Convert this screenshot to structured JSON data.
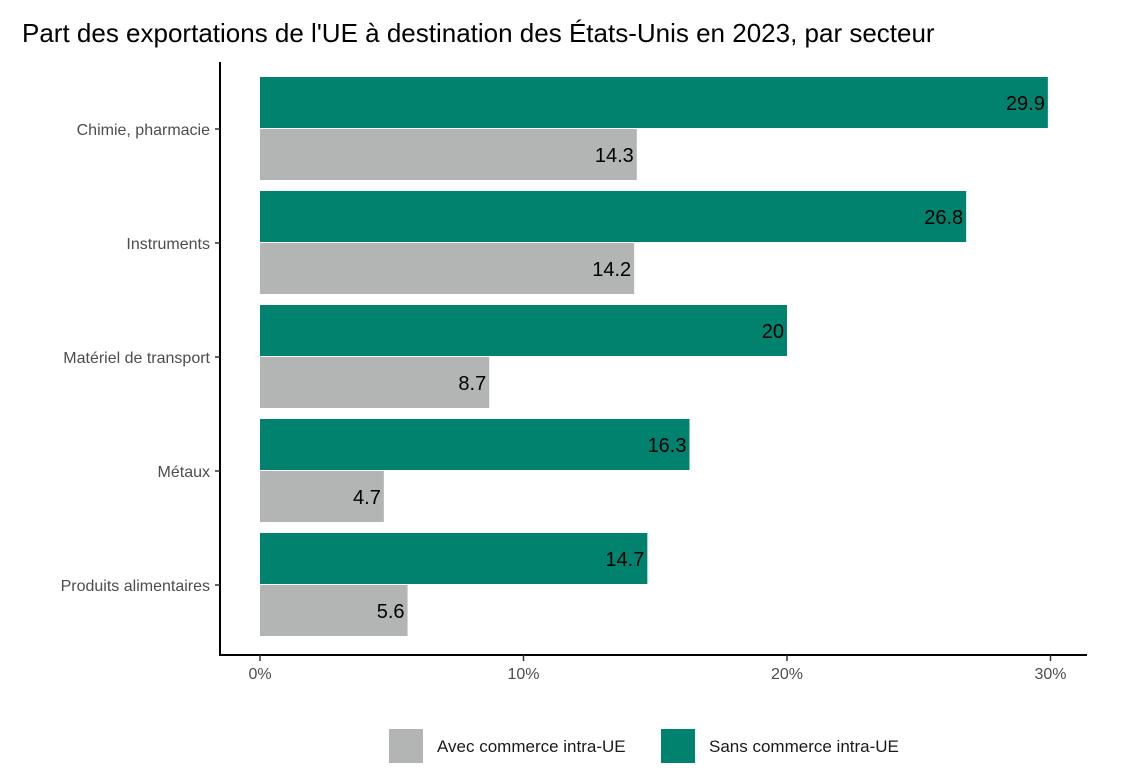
{
  "chart_data": {
    "type": "bar",
    "orientation": "horizontal",
    "title": "Part des exportations de l'UE à destination des États-Unis en 2023, par secteur",
    "xlabel": "",
    "ylabel": "",
    "categories": [
      "Chimie, pharmacie",
      "Instruments",
      "Matériel de transport",
      "Métaux",
      "Produits alimentaires"
    ],
    "series": [
      {
        "name": "Sans commerce intra-UE",
        "color": "#00826F",
        "values": [
          29.9,
          26.8,
          20,
          16.3,
          14.7
        ]
      },
      {
        "name": "Avec commerce intra-UE",
        "color": "#B2B5B4",
        "values": [
          14.3,
          14.2,
          8.7,
          4.7,
          5.6
        ]
      }
    ],
    "xlim": [
      0,
      31.5
    ],
    "xticks": [
      0,
      10,
      20,
      30
    ],
    "xtick_labels": [
      "0%",
      "10%",
      "20%",
      "30%"
    ],
    "grid": false,
    "legend": {
      "placement": "bottom",
      "entries": [
        "Avec commerce intra-UE",
        "Sans commerce intra-UE"
      ]
    }
  }
}
